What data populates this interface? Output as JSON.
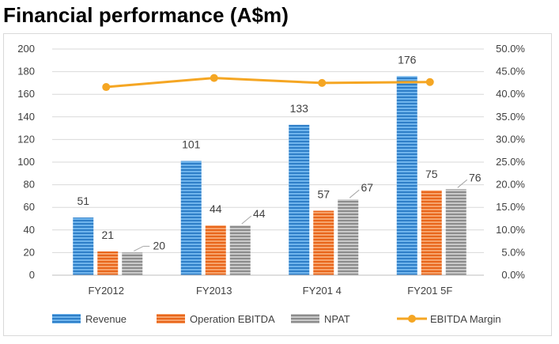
{
  "chart_data": {
    "type": "bar",
    "title": "Financial performance (A$m)",
    "categories": [
      "FY2012",
      "FY2013",
      "FY201 4",
      "FY201 5F"
    ],
    "series": [
      {
        "name": "Revenue",
        "type": "bar",
        "axis": "left",
        "color": "#3a8fd6",
        "values": [
          51,
          101,
          133,
          176
        ]
      },
      {
        "name": "Operation EBITDA",
        "type": "bar",
        "axis": "left",
        "color": "#f07a30",
        "values": [
          21,
          44,
          57,
          75
        ]
      },
      {
        "name": "NPAT",
        "type": "bar",
        "axis": "left",
        "color": "#a6a6a6",
        "values": [
          20,
          44,
          67,
          76
        ]
      },
      {
        "name": "EBITDA Margin",
        "type": "line",
        "axis": "right",
        "color": "#f5a623",
        "values": [
          0.416,
          0.436,
          0.425,
          0.427
        ]
      }
    ],
    "y_left": {
      "min": 0,
      "max": 200,
      "step": 20,
      "ticks": [
        "0",
        "20",
        "40",
        "60",
        "80",
        "100",
        "120",
        "140",
        "160",
        "180",
        "200"
      ]
    },
    "y_right": {
      "min": 0,
      "max": 0.5,
      "step": 0.05,
      "ticks": [
        "0.0%",
        "5.0%",
        "10.0%",
        "15.0%",
        "20.0%",
        "25.0%",
        "30.0%",
        "35.0%",
        "40.0%",
        "45.0%",
        "50.0%"
      ]
    },
    "grid": true,
    "legend_position": "bottom"
  }
}
